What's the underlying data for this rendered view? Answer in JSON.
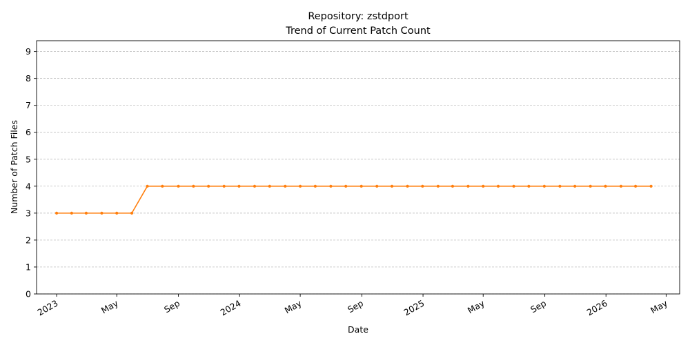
{
  "chart_data": {
    "type": "line",
    "title": "Repository: zstdport",
    "subtitle": "Trend of Current Patch Count",
    "xlabel": "Date",
    "ylabel": "Number of Patch Files",
    "xlim": [
      "2022-11-22",
      "2026-05-28"
    ],
    "ylim": [
      0,
      9.4
    ],
    "grid": "y",
    "y_ticks": [
      0,
      1,
      2,
      3,
      4,
      5,
      6,
      7,
      8,
      9
    ],
    "x_ticks": [
      {
        "date": "2023-01-01",
        "label": "2023"
      },
      {
        "date": "2023-05-01",
        "label": "May"
      },
      {
        "date": "2023-09-01",
        "label": "Sep"
      },
      {
        "date": "2024-01-01",
        "label": "2024"
      },
      {
        "date": "2024-05-01",
        "label": "May"
      },
      {
        "date": "2024-09-01",
        "label": "Sep"
      },
      {
        "date": "2025-01-01",
        "label": "2025"
      },
      {
        "date": "2025-05-01",
        "label": "May"
      },
      {
        "date": "2025-09-01",
        "label": "Sep"
      },
      {
        "date": "2026-01-01",
        "label": "2026"
      },
      {
        "date": "2026-05-01",
        "label": "May"
      }
    ],
    "series": [
      {
        "color": "#ff7f0e",
        "x": [
          "2023-01-01",
          "2023-01-31",
          "2023-03-01",
          "2023-04-01",
          "2023-05-01",
          "2023-05-31",
          "2023-07-01",
          "2023-07-31",
          "2023-09-01",
          "2023-10-01",
          "2023-10-31",
          "2023-12-01",
          "2023-12-31",
          "2024-01-31",
          "2024-03-01",
          "2024-04-01",
          "2024-05-01",
          "2024-05-31",
          "2024-07-01",
          "2024-07-31",
          "2024-08-31",
          "2024-10-01",
          "2024-10-31",
          "2024-12-01",
          "2024-12-31",
          "2025-01-31",
          "2025-03-01",
          "2025-04-01",
          "2025-05-01",
          "2025-05-31",
          "2025-07-01",
          "2025-07-31",
          "2025-08-31",
          "2025-10-01",
          "2025-10-31",
          "2025-12-01",
          "2025-12-31",
          "2026-01-31",
          "2026-03-01",
          "2026-04-01"
        ],
        "y": [
          3,
          3,
          3,
          3,
          3,
          3,
          4,
          4,
          4,
          4,
          4,
          4,
          4,
          4,
          4,
          4,
          4,
          4,
          4,
          4,
          4,
          4,
          4,
          4,
          4,
          4,
          4,
          4,
          4,
          4,
          4,
          4,
          4,
          4,
          4,
          4,
          4,
          4,
          4,
          4
        ]
      }
    ]
  }
}
